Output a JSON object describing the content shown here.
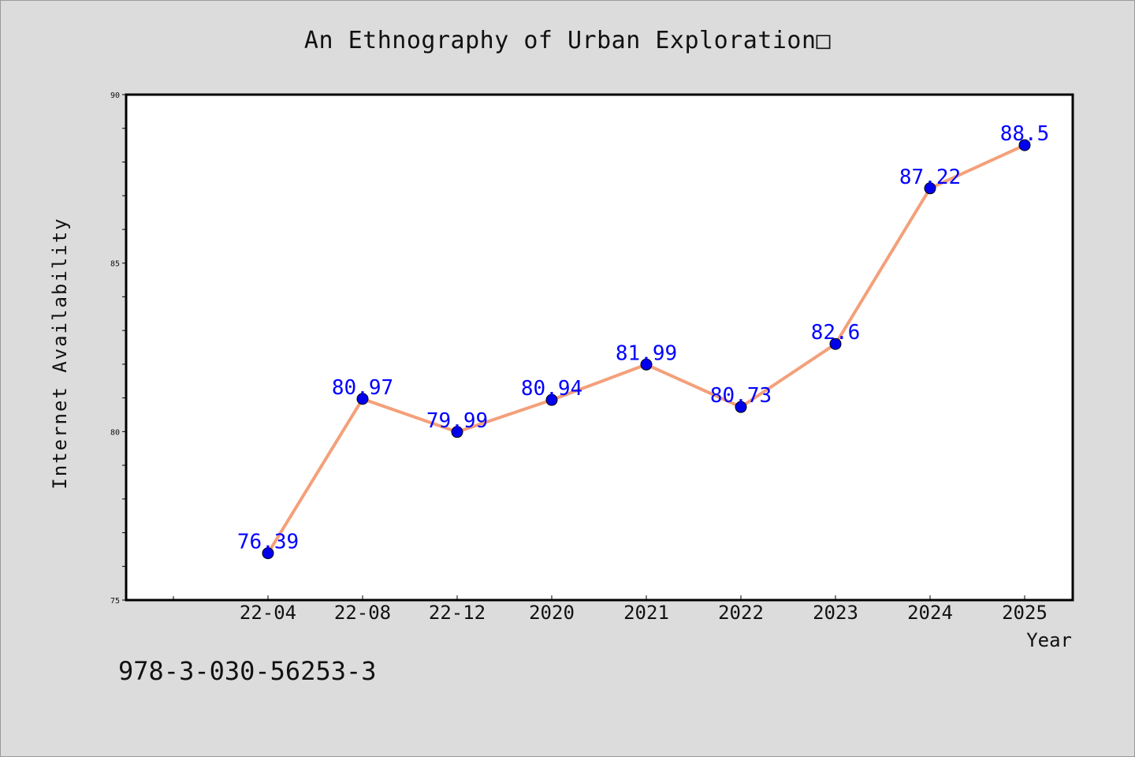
{
  "chart_data": {
    "type": "line",
    "title": "An Ethnography of Urban Exploration□",
    "xlabel": "Year",
    "ylabel": "Internet Availability",
    "categories": [
      "22-04",
      "22-08",
      "22-12",
      "2020",
      "2021",
      "2022",
      "2023",
      "2024",
      "2025"
    ],
    "series": [
      {
        "values": [
          76.39,
          80.97,
          79.99,
          80.94,
          81.99,
          80.73,
          82.6,
          87.22,
          88.5
        ],
        "labels": [
          "76.39",
          "80.97",
          "79.99",
          "80.94",
          "81.99",
          "80.73",
          "82.6",
          "87.22",
          "88.5"
        ]
      }
    ],
    "ylim": [
      75,
      90
    ],
    "yticks": [
      "75",
      "80",
      "85",
      "90"
    ],
    "grid": false,
    "legend": "none",
    "colors": {
      "line": "#f4a07a",
      "marker": "#0000ee",
      "data_label": "#0000ff",
      "background": "#dcdcdc",
      "plot_area": "#ffffff"
    }
  },
  "footer": {
    "isbn": "978-3-030-56253-3"
  }
}
